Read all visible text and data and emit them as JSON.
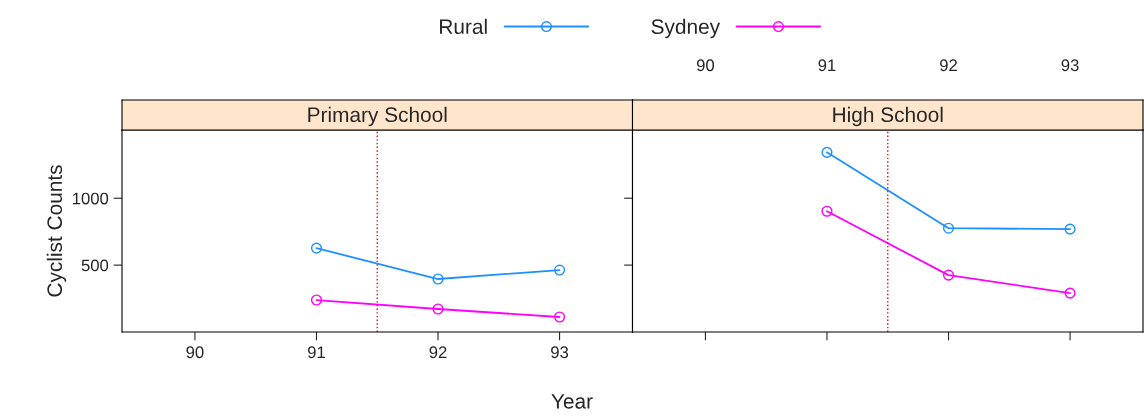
{
  "chart_data": [
    {
      "type": "line",
      "title": "Primary School",
      "xlabel": "Year",
      "ylabel": "Cyclist Counts",
      "x": [
        91,
        92,
        93
      ],
      "series": [
        {
          "name": "Rural",
          "color": "#1e90ff",
          "values": [
            627,
            396,
            463
          ]
        },
        {
          "name": "Sydney",
          "color": "#ff00ff",
          "values": [
            239,
            172,
            112
          ]
        }
      ],
      "xlim": [
        89.4,
        93.6
      ],
      "xticks": [
        90,
        91,
        92,
        93
      ],
      "ylim": [
        0,
        1510
      ],
      "yticks": [
        500,
        1000
      ],
      "ref_lines": [
        {
          "axis": "x",
          "value": 91.5,
          "color": "#ff0000",
          "line_style": "dotted"
        }
      ],
      "marker": "circle",
      "legend": "top",
      "grid": false
    },
    {
      "type": "line",
      "title": "High School",
      "x": [
        91,
        92,
        93
      ],
      "series": [
        {
          "color": "#1e90ff",
          "values": [
            1343,
            776,
            769
          ]
        },
        {
          "color": "#ff00ff",
          "values": [
            903,
            425,
            291
          ]
        }
      ],
      "xlim": [
        89.4,
        93.6
      ],
      "xticks": [
        90,
        91,
        92,
        93
      ],
      "ylim": [
        0,
        1510
      ],
      "yticks": [
        {
          "value": 500,
          "label": null
        },
        {
          "value": 1000,
          "label": null
        }
      ],
      "tick_labels": "x",
      "ref_lines": [
        {
          "axis": "x",
          "value": 91.5,
          "color": "#ff0000",
          "line_style": "dotted"
        }
      ],
      "marker": "circle",
      "grid": false
    }
  ]
}
